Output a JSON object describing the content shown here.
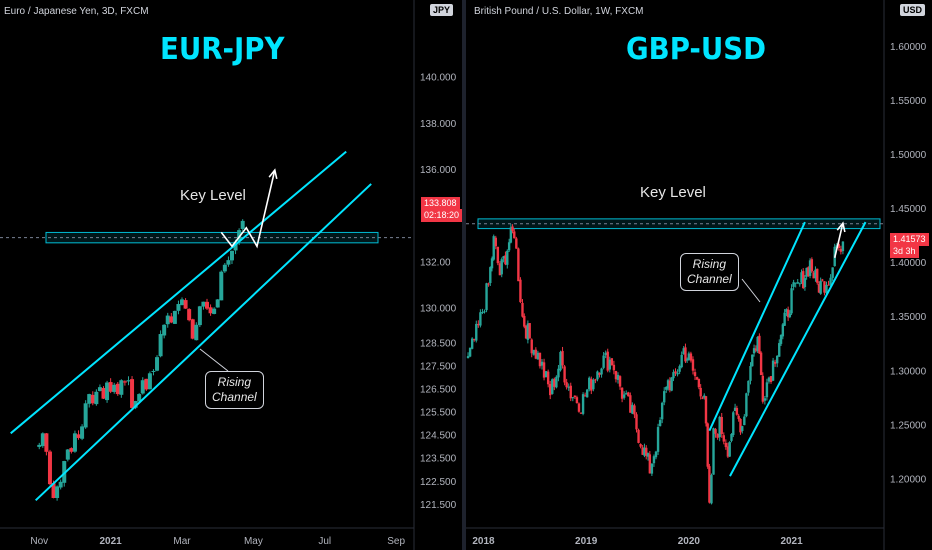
{
  "colors": {
    "background": "#000000",
    "up_candle": "#26a69a",
    "down_candle": "#f23645",
    "channel": "#00e5ff",
    "key_level_box": "#00bcd4",
    "arrow": "#ffffff"
  },
  "chart_data": [
    {
      "type": "candlestick",
      "symbol_line": "Euro / Japanese Yen, 3D, FXCM",
      "currency": "JPY",
      "title": "EUR-JPY",
      "ylim": [
        120.5,
        142.5
      ],
      "yticks": [
        "140.000",
        "138.000",
        "136.000",
        "132.00",
        "130.000",
        "128.500",
        "127.500",
        "126.500",
        "125.500",
        "124.500",
        "123.500",
        "122.500",
        "121.500"
      ],
      "ytick_values": [
        140.0,
        138.0,
        136.0,
        132.0,
        130.0,
        128.5,
        127.5,
        126.5,
        125.5,
        124.5,
        123.5,
        122.5,
        121.5
      ],
      "xticks": [
        {
          "label": "Nov",
          "value": 0,
          "bold": false
        },
        {
          "label": "2021",
          "value": 20,
          "bold": true
        },
        {
          "label": "Mar",
          "value": 40,
          "bold": false
        },
        {
          "label": "May",
          "value": 60,
          "bold": false
        },
        {
          "label": "Jul",
          "value": 80,
          "bold": false
        },
        {
          "label": "Sep",
          "value": 100,
          "bold": false
        }
      ],
      "xlim": [
        -11,
        105
      ],
      "last_price": "133.808",
      "countdown": "02:18:20",
      "key_level_label": "Key Level",
      "key_level": [
        132.85,
        133.3
      ],
      "channel_label": [
        "Rising",
        "Channel"
      ],
      "channel_upper": [
        [
          -8,
          124.6
        ],
        [
          86,
          136.8
        ]
      ],
      "channel_lower": [
        [
          -1,
          121.7
        ],
        [
          93,
          135.4
        ]
      ],
      "closes": [
        124.1,
        124.6,
        123.8,
        122.4,
        121.8,
        122.3,
        122.5,
        123.4,
        123.9,
        123.8,
        124.6,
        124.4,
        124.9,
        125.9,
        126.3,
        125.9,
        126.4,
        126.6,
        126.1,
        126.8,
        126.4,
        126.7,
        126.3,
        126.9,
        126.8,
        126.9,
        125.7,
        126.0,
        126.3,
        126.9,
        126.5,
        127.2,
        127.3,
        127.9,
        128.9,
        129.3,
        129.7,
        129.4,
        129.9,
        130.2,
        130.4,
        130.0,
        129.5,
        128.7,
        129.3,
        130.1,
        130.3,
        130.0,
        129.8,
        130.0,
        130.4,
        131.6,
        131.9,
        132.1,
        132.5,
        132.9,
        133.4,
        133.8
      ],
      "projection_arrow": [
        [
          51,
          133.3
        ],
        [
          54,
          132.7
        ],
        [
          58,
          133.5
        ],
        [
          61,
          132.7
        ],
        [
          66,
          136.0
        ]
      ]
    },
    {
      "type": "candlestick",
      "symbol_line": "British Pound / U.S. Dollar, 1W, FXCM",
      "currency": "USD",
      "title": "GBP-USD",
      "ylim": [
        1.155,
        1.625
      ],
      "yticks": [
        "1.60000",
        "1.55000",
        "1.50000",
        "1.45000",
        "1.40000",
        "1.35000",
        "1.30000",
        "1.25000",
        "1.20000"
      ],
      "ytick_values": [
        1.6,
        1.55,
        1.5,
        1.45,
        1.4,
        1.35,
        1.3,
        1.25,
        1.2
      ],
      "xticks": [
        {
          "label": "2018",
          "value": 2018.0,
          "bold": true
        },
        {
          "label": "2019",
          "value": 2019.0,
          "bold": true
        },
        {
          "label": "2020",
          "value": 2020.0,
          "bold": true
        },
        {
          "label": "2021",
          "value": 2021.0,
          "bold": true
        }
      ],
      "xlim": [
        2017.83,
        2021.9
      ],
      "last_price": "1.41573",
      "countdown": "3d 3h",
      "key_level_label": "Key Level",
      "key_level": [
        1.432,
        1.441
      ],
      "channel_label": [
        "Rising",
        "Channel"
      ],
      "channel_upper": [
        [
          2020.2,
          1.245
        ],
        [
          2021.13,
          1.438
        ]
      ],
      "channel_lower": [
        [
          2020.4,
          1.203
        ],
        [
          2021.72,
          1.438
        ]
      ],
      "weekly_closes": [
        [
          2017.85,
          1.31
        ],
        [
          2017.95,
          1.34
        ],
        [
          2018.05,
          1.38
        ],
        [
          2018.1,
          1.42
        ],
        [
          2018.16,
          1.39
        ],
        [
          2018.25,
          1.42
        ],
        [
          2018.3,
          1.43
        ],
        [
          2018.38,
          1.35
        ],
        [
          2018.45,
          1.33
        ],
        [
          2018.55,
          1.31
        ],
        [
          2018.65,
          1.28
        ],
        [
          2018.75,
          1.31
        ],
        [
          2018.85,
          1.28
        ],
        [
          2018.95,
          1.27
        ],
        [
          2019.05,
          1.29
        ],
        [
          2019.15,
          1.31
        ],
        [
          2019.25,
          1.31
        ],
        [
          2019.35,
          1.28
        ],
        [
          2019.45,
          1.26
        ],
        [
          2019.55,
          1.23
        ],
        [
          2019.62,
          1.21
        ],
        [
          2019.7,
          1.24
        ],
        [
          2019.78,
          1.29
        ],
        [
          2019.85,
          1.29
        ],
        [
          2019.95,
          1.32
        ],
        [
          2020.0,
          1.31
        ],
        [
          2020.08,
          1.29
        ],
        [
          2020.15,
          1.28
        ],
        [
          2020.2,
          1.17
        ],
        [
          2020.24,
          1.24
        ],
        [
          2020.3,
          1.25
        ],
        [
          2020.38,
          1.23
        ],
        [
          2020.45,
          1.26
        ],
        [
          2020.52,
          1.25
        ],
        [
          2020.6,
          1.31
        ],
        [
          2020.67,
          1.33
        ],
        [
          2020.72,
          1.28
        ],
        [
          2020.8,
          1.3
        ],
        [
          2020.88,
          1.33
        ],
        [
          2020.95,
          1.35
        ],
        [
          2021.0,
          1.37
        ],
        [
          2021.08,
          1.38
        ],
        [
          2021.13,
          1.39
        ],
        [
          2021.18,
          1.4
        ],
        [
          2021.25,
          1.38
        ],
        [
          2021.3,
          1.38
        ],
        [
          2021.38,
          1.39
        ],
        [
          2021.42,
          1.42
        ],
        [
          2021.48,
          1.41
        ],
        [
          2021.5,
          1.42
        ]
      ],
      "projection_arrow": [
        [
          2021.42,
          1.405
        ],
        [
          2021.5,
          1.437
        ]
      ]
    }
  ]
}
